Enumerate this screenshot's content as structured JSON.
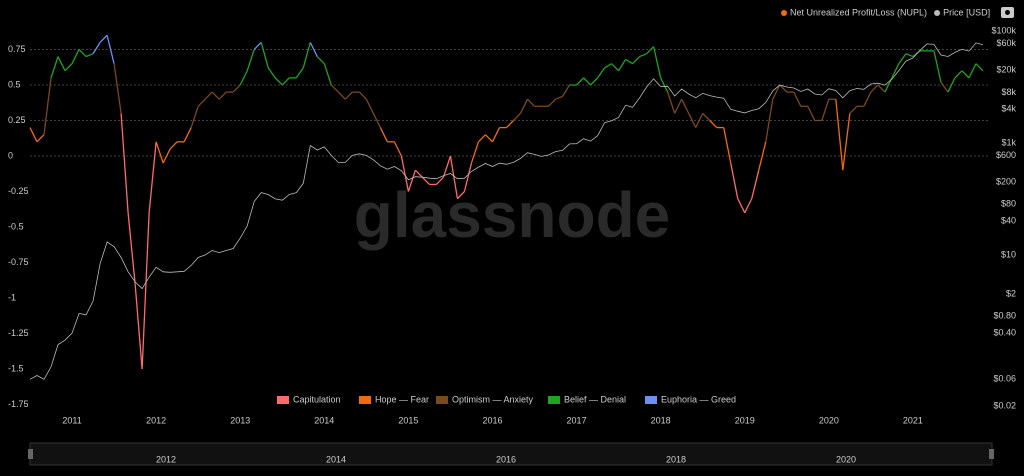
{
  "chart_data": {
    "type": "line",
    "watermark": "glassnode",
    "x": [
      "2010-07",
      "2010-08",
      "2010-09",
      "2010-10",
      "2010-11",
      "2010-12",
      "2011-01",
      "2011-02",
      "2011-03",
      "2011-04",
      "2011-05",
      "2011-06",
      "2011-07",
      "2011-08",
      "2011-09",
      "2011-10",
      "2011-11",
      "2011-12",
      "2012-01",
      "2012-02",
      "2012-03",
      "2012-04",
      "2012-05",
      "2012-06",
      "2012-07",
      "2012-08",
      "2012-09",
      "2012-10",
      "2012-11",
      "2012-12",
      "2013-01",
      "2013-02",
      "2013-03",
      "2013-04",
      "2013-05",
      "2013-06",
      "2013-07",
      "2013-08",
      "2013-09",
      "2013-10",
      "2013-11",
      "2013-12",
      "2014-01",
      "2014-02",
      "2014-03",
      "2014-04",
      "2014-05",
      "2014-06",
      "2014-07",
      "2014-08",
      "2014-09",
      "2014-10",
      "2014-11",
      "2014-12",
      "2015-01",
      "2015-02",
      "2015-03",
      "2015-04",
      "2015-05",
      "2015-06",
      "2015-07",
      "2015-08",
      "2015-09",
      "2015-10",
      "2015-11",
      "2015-12",
      "2016-01",
      "2016-02",
      "2016-03",
      "2016-04",
      "2016-05",
      "2016-06",
      "2016-07",
      "2016-08",
      "2016-09",
      "2016-10",
      "2016-11",
      "2016-12",
      "2017-01",
      "2017-02",
      "2017-03",
      "2017-04",
      "2017-05",
      "2017-06",
      "2017-07",
      "2017-08",
      "2017-09",
      "2017-10",
      "2017-11",
      "2017-12",
      "2018-01",
      "2018-02",
      "2018-03",
      "2018-04",
      "2018-05",
      "2018-06",
      "2018-07",
      "2018-08",
      "2018-09",
      "2018-10",
      "2018-11",
      "2018-12",
      "2019-01",
      "2019-02",
      "2019-03",
      "2019-04",
      "2019-05",
      "2019-06",
      "2019-07",
      "2019-08",
      "2019-09",
      "2019-10",
      "2019-11",
      "2019-12",
      "2020-01",
      "2020-02",
      "2020-03",
      "2020-04",
      "2020-05",
      "2020-06",
      "2020-07",
      "2020-08",
      "2020-09",
      "2020-10",
      "2020-11",
      "2020-12",
      "2021-01",
      "2021-02",
      "2021-03",
      "2021-04",
      "2021-05",
      "2021-06",
      "2021-07",
      "2021-08",
      "2021-09",
      "2021-10",
      "2021-11"
    ],
    "series": [
      {
        "name": "Net Unrealized Profit/Loss (NUPL)",
        "color": "#f26b10",
        "values": [
          0.2,
          0.1,
          0.15,
          0.55,
          0.7,
          0.6,
          0.65,
          0.75,
          0.7,
          0.72,
          0.8,
          0.85,
          0.65,
          0.3,
          -0.4,
          -0.9,
          -1.5,
          -0.4,
          0.1,
          -0.05,
          0.05,
          0.1,
          0.1,
          0.2,
          0.35,
          0.4,
          0.45,
          0.4,
          0.45,
          0.45,
          0.5,
          0.6,
          0.75,
          0.8,
          0.62,
          0.55,
          0.5,
          0.55,
          0.55,
          0.62,
          0.8,
          0.7,
          0.65,
          0.5,
          0.45,
          0.4,
          0.45,
          0.45,
          0.4,
          0.3,
          0.2,
          0.1,
          0.1,
          0.0,
          -0.25,
          -0.1,
          -0.15,
          -0.2,
          -0.2,
          -0.15,
          0.0,
          -0.3,
          -0.25,
          -0.05,
          0.1,
          0.15,
          0.1,
          0.2,
          0.2,
          0.25,
          0.3,
          0.4,
          0.35,
          0.35,
          0.35,
          0.4,
          0.42,
          0.5,
          0.5,
          0.55,
          0.5,
          0.55,
          0.62,
          0.65,
          0.6,
          0.68,
          0.65,
          0.7,
          0.72,
          0.77,
          0.55,
          0.45,
          0.3,
          0.4,
          0.3,
          0.2,
          0.3,
          0.25,
          0.2,
          0.2,
          -0.05,
          -0.3,
          -0.4,
          -0.3,
          -0.1,
          0.1,
          0.4,
          0.5,
          0.45,
          0.45,
          0.35,
          0.35,
          0.25,
          0.25,
          0.4,
          0.4,
          -0.1,
          0.3,
          0.35,
          0.35,
          0.45,
          0.5,
          0.45,
          0.55,
          0.65,
          0.72,
          0.7,
          0.74,
          0.74,
          0.74,
          0.52,
          0.45,
          0.55,
          0.6,
          0.55,
          0.65,
          0.6
        ]
      },
      {
        "name": "Price [USD]",
        "color": "#bbbbbb",
        "axis": "y2",
        "values": [
          0.06,
          0.07,
          0.06,
          0.1,
          0.25,
          0.3,
          0.4,
          0.9,
          0.85,
          1.5,
          7,
          17,
          14,
          9,
          5,
          3.3,
          2.5,
          4,
          6,
          5,
          4.9,
          5,
          5.1,
          6.5,
          9,
          10,
          12,
          11,
          12,
          13,
          20,
          33,
          90,
          130,
          120,
          100,
          95,
          120,
          130,
          190,
          900,
          750,
          850,
          600,
          450,
          450,
          600,
          640,
          600,
          500,
          390,
          340,
          380,
          320,
          220,
          250,
          245,
          235,
          230,
          260,
          285,
          230,
          235,
          310,
          370,
          430,
          380,
          435,
          415,
          450,
          530,
          670,
          625,
          575,
          610,
          700,
          740,
          960,
          970,
          1190,
          1080,
          1350,
          2300,
          2500,
          2870,
          4700,
          4340,
          6400,
          10000,
          14000,
          10200,
          10300,
          6900,
          9200,
          7500,
          6400,
          7700,
          7000,
          6600,
          6300,
          4000,
          3700,
          3450,
          3800,
          4100,
          5300,
          8500,
          10800,
          10000,
          9600,
          8300,
          9200,
          7500,
          7200,
          9300,
          8600,
          6400,
          8600,
          9400,
          9100,
          11300,
          11700,
          10800,
          13800,
          19700,
          29000,
          33000,
          45000,
          58800,
          57700,
          37300,
          35000,
          41500,
          47100,
          43800,
          61300,
          57000
        ]
      }
    ],
    "zones": [
      {
        "name": "Capitulation",
        "color": "#ff6b6b"
      },
      {
        "name": "Hope — Fear",
        "color": "#f26b10",
        "min": 0
      },
      {
        "name": "Optimism — Anxiety",
        "color": "#7a4a1e",
        "min": 0.25
      },
      {
        "name": "Belief — Denial",
        "color": "#1fa51f",
        "min": 0.5
      },
      {
        "name": "Euphoria — Greed",
        "color": "#6b8ff5",
        "min": 0.75
      }
    ],
    "xlim": [
      "2010-07",
      "2021-12"
    ],
    "xticks": [
      {
        "value": "2011-01",
        "label": "2011"
      },
      {
        "value": "2012-01",
        "label": "2012"
      },
      {
        "value": "2013-01",
        "label": "2013"
      },
      {
        "value": "2014-01",
        "label": "2014"
      },
      {
        "value": "2015-01",
        "label": "2015"
      },
      {
        "value": "2016-01",
        "label": "2016"
      },
      {
        "value": "2017-01",
        "label": "2017"
      },
      {
        "value": "2018-01",
        "label": "2018"
      },
      {
        "value": "2019-01",
        "label": "2019"
      },
      {
        "value": "2020-01",
        "label": "2020"
      },
      {
        "value": "2021-01",
        "label": "2021"
      }
    ],
    "ylim": [
      -1.76,
      0.88
    ],
    "yticks": [
      0.75,
      0.5,
      0.25,
      0,
      -0.25,
      -0.5,
      -0.75,
      -1,
      -1.25,
      -1.5,
      -1.75
    ],
    "y2lim": [
      0.02,
      100000
    ],
    "y2log": true,
    "y2ticks": [
      {
        "value": 100000,
        "label": "$100k"
      },
      {
        "value": 60000,
        "label": "$60k"
      },
      {
        "value": 20000,
        "label": "$20k"
      },
      {
        "value": 8000,
        "label": "$8k"
      },
      {
        "value": 4000,
        "label": "$4k"
      },
      {
        "value": 1000,
        "label": "$1k"
      },
      {
        "value": 600,
        "label": "$600"
      },
      {
        "value": 200,
        "label": "$200"
      },
      {
        "value": 80,
        "label": "$80"
      },
      {
        "value": 40,
        "label": "$40"
      },
      {
        "value": 10,
        "label": "$10"
      },
      {
        "value": 2,
        "label": "$2"
      },
      {
        "value": 0.8,
        "label": "$0.80"
      },
      {
        "value": 0.4,
        "label": "$0.40"
      },
      {
        "value": 0.06,
        "label": "$0.06"
      },
      {
        "value": 0.02,
        "label": "$0.02"
      }
    ],
    "navigator_labels": [
      "2012",
      "2014",
      "2016",
      "2018",
      "2020"
    ]
  }
}
